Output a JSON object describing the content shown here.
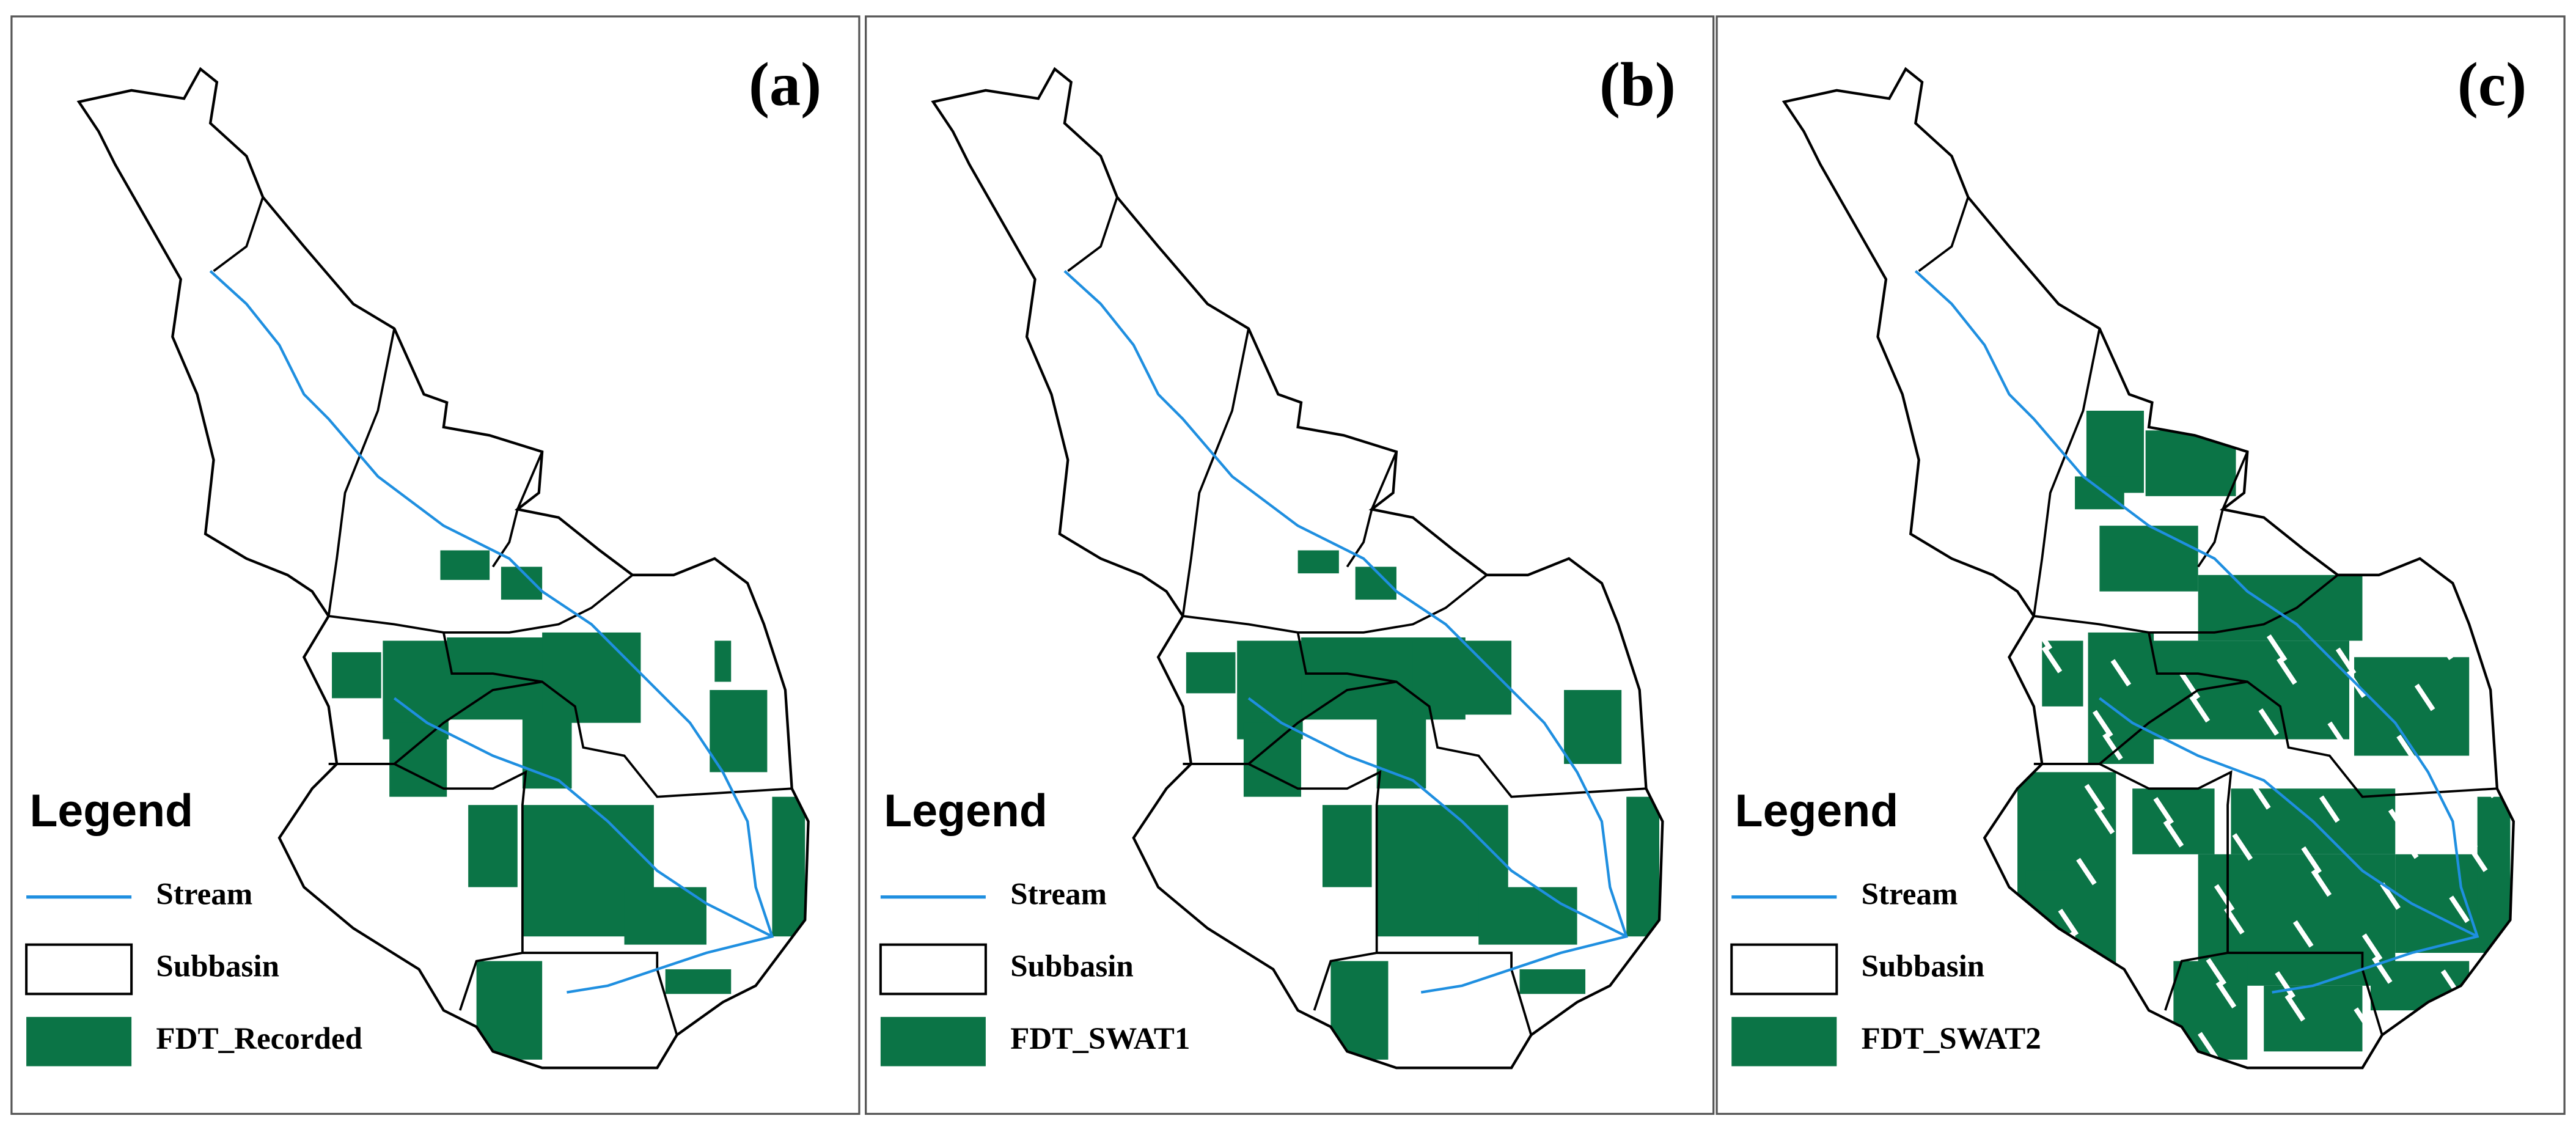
{
  "panels": [
    {
      "label": "(a)",
      "legend": {
        "title": "Legend",
        "items": [
          "Stream",
          "Subbasin",
          "FDT_Recorded"
        ]
      }
    },
    {
      "label": "(b)",
      "legend": {
        "title": "Legend",
        "items": [
          "Stream",
          "Subbasin",
          "FDT_SWAT1"
        ]
      }
    },
    {
      "label": "(c)",
      "legend": {
        "title": "Legend",
        "items": [
          "Stream",
          "Subbasin",
          "FDT_SWAT2"
        ]
      }
    }
  ]
}
